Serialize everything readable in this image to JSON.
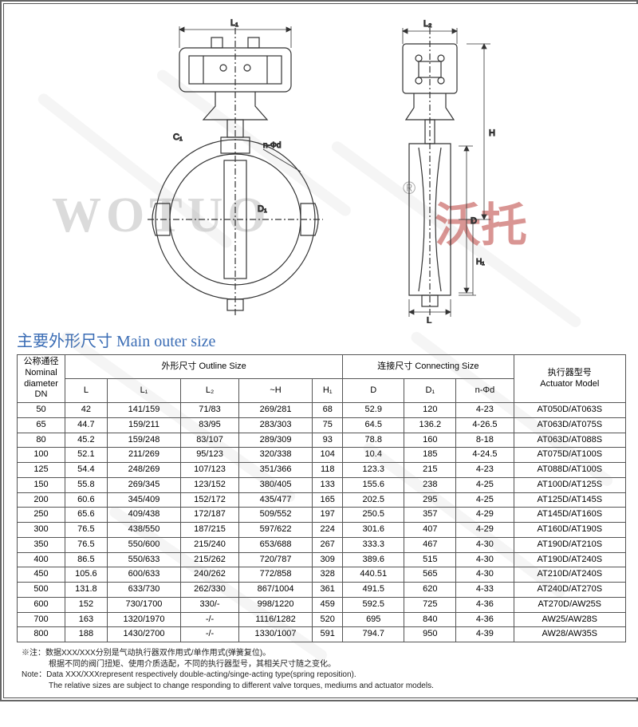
{
  "watermark": {
    "latin": "WOTUO",
    "reg": "®",
    "cn": "沃托"
  },
  "diagram_labels": {
    "L1": "L₁",
    "L2": "L₂",
    "H": "H",
    "H1": "H₁",
    "L": "L",
    "D": "D",
    "D1": "D₁",
    "C1": "C₁",
    "nphi": "n-Φd"
  },
  "section_title": "主要外形尺寸 Main outer size",
  "headers": {
    "dn": "公称通径\nNominal\ndiameter\nDN",
    "outline": "外形尺寸 Outline Size",
    "connecting": "连接尺寸 Connecting Size",
    "actuator": "执行器型号\nActuator Model",
    "L": "L",
    "L1": "L₁",
    "L2": "L₂",
    "H": "~H",
    "H1": "H₁",
    "D": "D",
    "D1": "D₁",
    "nphi": "n-Φd"
  },
  "rows": [
    {
      "dn": "50",
      "L": "42",
      "L1": "141/159",
      "L2": "71/83",
      "H": "269/281",
      "H1": "68",
      "D": "52.9",
      "D1": "120",
      "nphi": "4-23",
      "act": "AT050D/AT063S"
    },
    {
      "dn": "65",
      "L": "44.7",
      "L1": "159/211",
      "L2": "83/95",
      "H": "283/303",
      "H1": "75",
      "D": "64.5",
      "D1": "136.2",
      "nphi": "4-26.5",
      "act": "AT063D/AT075S"
    },
    {
      "dn": "80",
      "L": "45.2",
      "L1": "159/248",
      "L2": "83/107",
      "H": "289/309",
      "H1": "93",
      "D": "78.8",
      "D1": "160",
      "nphi": "8-18",
      "act": "AT063D/AT088S"
    },
    {
      "dn": "100",
      "L": "52.1",
      "L1": "211/269",
      "L2": "95/123",
      "H": "320/338",
      "H1": "104",
      "D": "10.4",
      "D1": "185",
      "nphi": "4-24.5",
      "act": "AT075D/AT100S"
    },
    {
      "dn": "125",
      "L": "54.4",
      "L1": "248/269",
      "L2": "107/123",
      "H": "351/366",
      "H1": "118",
      "D": "123.3",
      "D1": "215",
      "nphi": "4-23",
      "act": "AT088D/AT100S"
    },
    {
      "dn": "150",
      "L": "55.8",
      "L1": "269/345",
      "L2": "123/152",
      "H": "380/405",
      "H1": "133",
      "D": "155.6",
      "D1": "238",
      "nphi": "4-25",
      "act": "AT100D/AT125S"
    },
    {
      "dn": "200",
      "L": "60.6",
      "L1": "345/409",
      "L2": "152/172",
      "H": "435/477",
      "H1": "165",
      "D": "202.5",
      "D1": "295",
      "nphi": "4-25",
      "act": "AT125D/AT145S"
    },
    {
      "dn": "250",
      "L": "65.6",
      "L1": "409/438",
      "L2": "172/187",
      "H": "509/552",
      "H1": "197",
      "D": "250.5",
      "D1": "357",
      "nphi": "4-29",
      "act": "AT145D/AT160S"
    },
    {
      "dn": "300",
      "L": "76.5",
      "L1": "438/550",
      "L2": "187/215",
      "H": "597/622",
      "H1": "224",
      "D": "301.6",
      "D1": "407",
      "nphi": "4-29",
      "act": "AT160D/AT190S"
    },
    {
      "dn": "350",
      "L": "76.5",
      "L1": "550/600",
      "L2": "215/240",
      "H": "653/688",
      "H1": "267",
      "D": "333.3",
      "D1": "467",
      "nphi": "4-30",
      "act": "AT190D/AT210S"
    },
    {
      "dn": "400",
      "L": "86.5",
      "L1": "550/633",
      "L2": "215/262",
      "H": "720/787",
      "H1": "309",
      "D": "389.6",
      "D1": "515",
      "nphi": "4-30",
      "act": "AT190D/AT240S"
    },
    {
      "dn": "450",
      "L": "105.6",
      "L1": "600/633",
      "L2": "240/262",
      "H": "772/858",
      "H1": "328",
      "D": "440.51",
      "D1": "565",
      "nphi": "4-30",
      "act": "AT210D/AT240S"
    },
    {
      "dn": "500",
      "L": "131.8",
      "L1": "633/730",
      "L2": "262/330",
      "H": "867/1004",
      "H1": "361",
      "D": "491.5",
      "D1": "620",
      "nphi": "4-33",
      "act": "AT240D/AT270S"
    },
    {
      "dn": "600",
      "L": "152",
      "L1": "730/1700",
      "L2": "330/-",
      "H": "998/1220",
      "H1": "459",
      "D": "592.5",
      "D1": "725",
      "nphi": "4-36",
      "act": "AT270D/AW25S"
    },
    {
      "dn": "700",
      "L": "163",
      "L1": "1320/1970",
      "L2": "-/-",
      "H": "1116/1282",
      "H1": "520",
      "D": "695",
      "D1": "840",
      "nphi": "4-36",
      "act": "AW25/AW28S"
    },
    {
      "dn": "800",
      "L": "188",
      "L1": "1430/2700",
      "L2": "-/-",
      "H": "1330/1007",
      "H1": "591",
      "D": "794.7",
      "D1": "950",
      "nphi": "4-39",
      "act": "AW28/AW35S"
    }
  ],
  "footnote": {
    "l1": "※注：数据XXX/XXX分别是气动执行器双作用式/单作用式(弹簧复位)。",
    "l2": "根据不同的阀门扭矩、使用介质选配，不同的执行器型号，其相关尺寸随之变化。",
    "l3": "Note：Data XXX/XXXrepresent respectively double-acting/singe-acting type(spring reposition).",
    "l4": "The relative sizes are subject to change responding to different valve torques, mediums and actuator models."
  },
  "styling": {
    "title_color": "#3b6db5",
    "border_color": "#555555",
    "watermark_latin_color": "#999999",
    "watermark_cn_color": "#c0504d",
    "table_font_size": 11,
    "title_font_size": 20,
    "footnote_font_size": 10
  }
}
